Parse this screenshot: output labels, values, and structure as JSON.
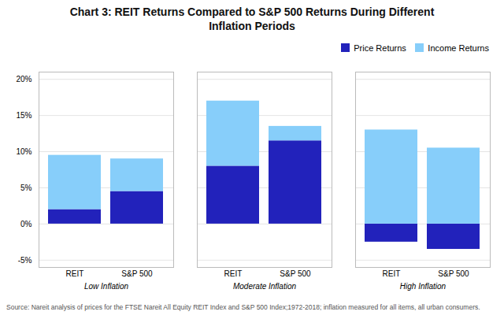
{
  "chart_data": {
    "type": "bar",
    "title": "Chart 3: REIT Returns Compared to S&P 500 Returns During Different\nInflation Periods",
    "categories": [
      "REIT",
      "S&P 500",
      "REIT",
      "S&P 500",
      "REIT",
      "S&P 500"
    ],
    "groups": [
      "Low Inflation",
      "Moderate Inflation",
      "High Inflation"
    ],
    "series": [
      {
        "name": "Price Returns",
        "color": "#2222BB",
        "values": [
          2.0,
          4.5,
          8.0,
          11.5,
          -2.5,
          -3.5
        ]
      },
      {
        "name": "Income Returns",
        "color": "#87CEFA",
        "values": [
          7.5,
          4.5,
          9.0,
          2.0,
          13.0,
          10.5
        ]
      }
    ],
    "stacked": true,
    "ylim": [
      -6,
      21
    ],
    "yticks": [
      {
        "value": -5,
        "label": "-5%"
      },
      {
        "value": 0,
        "label": "0%"
      },
      {
        "value": 5,
        "label": "5%"
      },
      {
        "value": 10,
        "label": "10%"
      },
      {
        "value": 15,
        "label": "15%"
      },
      {
        "value": 20,
        "label": "20%"
      }
    ],
    "grid": true,
    "legend": "upper right",
    "source": "Source: Nareit analysis of prices for the FTSE Nareit All Equity REIT Index and S&P 500 Index;1972-2018; inflation measured for all items, all urban consumers."
  }
}
